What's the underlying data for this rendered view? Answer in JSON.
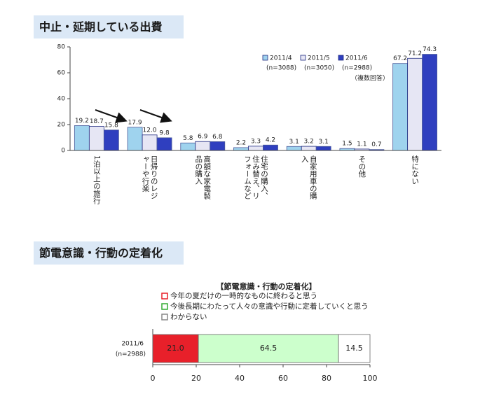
{
  "chart_data": [
    {
      "type": "bar",
      "heading": "中止・延期している出費",
      "categories": [
        "1泊以上の旅行",
        "日帰りのレジャーや行楽",
        "高額な家電製品の購入",
        "住宅の購入、住み替え、リフォームなど",
        "自家用車の購入",
        "その他",
        "特にない"
      ],
      "series": [
        {
          "name": "2011/4",
          "sample": "(n=3088)",
          "color": "#9fd3ee",
          "values": [
            19.2,
            17.9,
            5.8,
            2.2,
            3.1,
            1.5,
            67.2
          ]
        },
        {
          "name": "2011/5",
          "sample": "(n=3050)",
          "color": "#e6e6f4",
          "values": [
            18.7,
            12.0,
            6.9,
            3.3,
            3.2,
            1.1,
            71.2
          ],
          "value_labels": [
            "18.7",
            "12.0",
            "6.9",
            "3.3",
            "3.2",
            "1.1",
            "71.2"
          ]
        },
        {
          "name": "2011/6",
          "sample": "(n=2988)",
          "color": "#2f3fbf",
          "values": [
            15.8,
            9.8,
            6.8,
            4.2,
            3.1,
            0.7,
            74.3
          ]
        }
      ],
      "note": "（複数回答）",
      "ylim": [
        0,
        80
      ],
      "yticks": [
        0,
        20,
        40,
        60,
        80
      ]
    },
    {
      "type": "stacked_barh",
      "heading": "節電意識・行動の定着化",
      "title": "【節電意識・行動の定着化】",
      "categories": [
        "2011/6"
      ],
      "sample": "(n=2988)",
      "series": [
        {
          "name": "今年の夏だけの一時的なものに終わると思う",
          "color": "#e8202a",
          "values": [
            21.0
          ],
          "value_labels": [
            "21.0"
          ]
        },
        {
          "name": "今後長期にわたって人々の意識や行動に定着していくと思う",
          "color": "#ccffcc",
          "values": [
            64.5
          ]
        },
        {
          "name": "わからない",
          "color": "#ffffff",
          "values": [
            14.5
          ]
        }
      ],
      "xlim": [
        0,
        100
      ],
      "xticks": [
        0,
        20,
        40,
        60,
        80,
        100
      ]
    }
  ]
}
